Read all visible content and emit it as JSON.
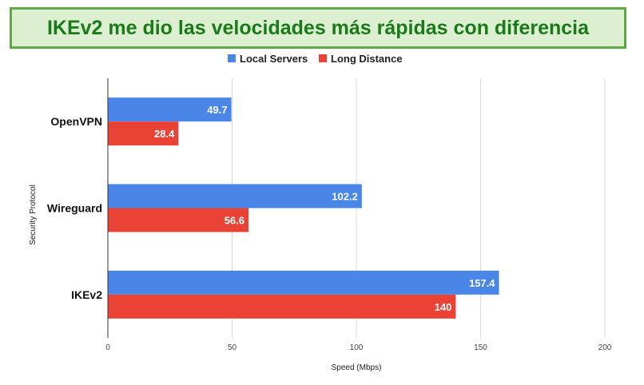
{
  "banner": {
    "title": "IKEv2 me dio las velocidades más rápidas con diferencia"
  },
  "chart_data": {
    "type": "bar",
    "orientation": "horizontal",
    "categories": [
      "OpenVPN",
      "Wireguard",
      "IKEv2"
    ],
    "series": [
      {
        "name": "Local Servers",
        "color": "#4a86e8",
        "values": [
          49.7,
          102.2,
          157.4
        ]
      },
      {
        "name": "Long Distance",
        "color": "#ea4335",
        "values": [
          28.4,
          56.6,
          140
        ]
      }
    ],
    "data_labels": [
      [
        "49.7",
        "102.2",
        "157.4"
      ],
      [
        "28.4",
        "56.6",
        "140"
      ]
    ],
    "xlabel": "Speed (Mbps)",
    "ylabel": "Security Protocol",
    "xlim": [
      0,
      200
    ],
    "xticks": [
      "0",
      "50",
      "100",
      "150",
      "200"
    ],
    "grid": true,
    "legend_position": "top-center"
  }
}
